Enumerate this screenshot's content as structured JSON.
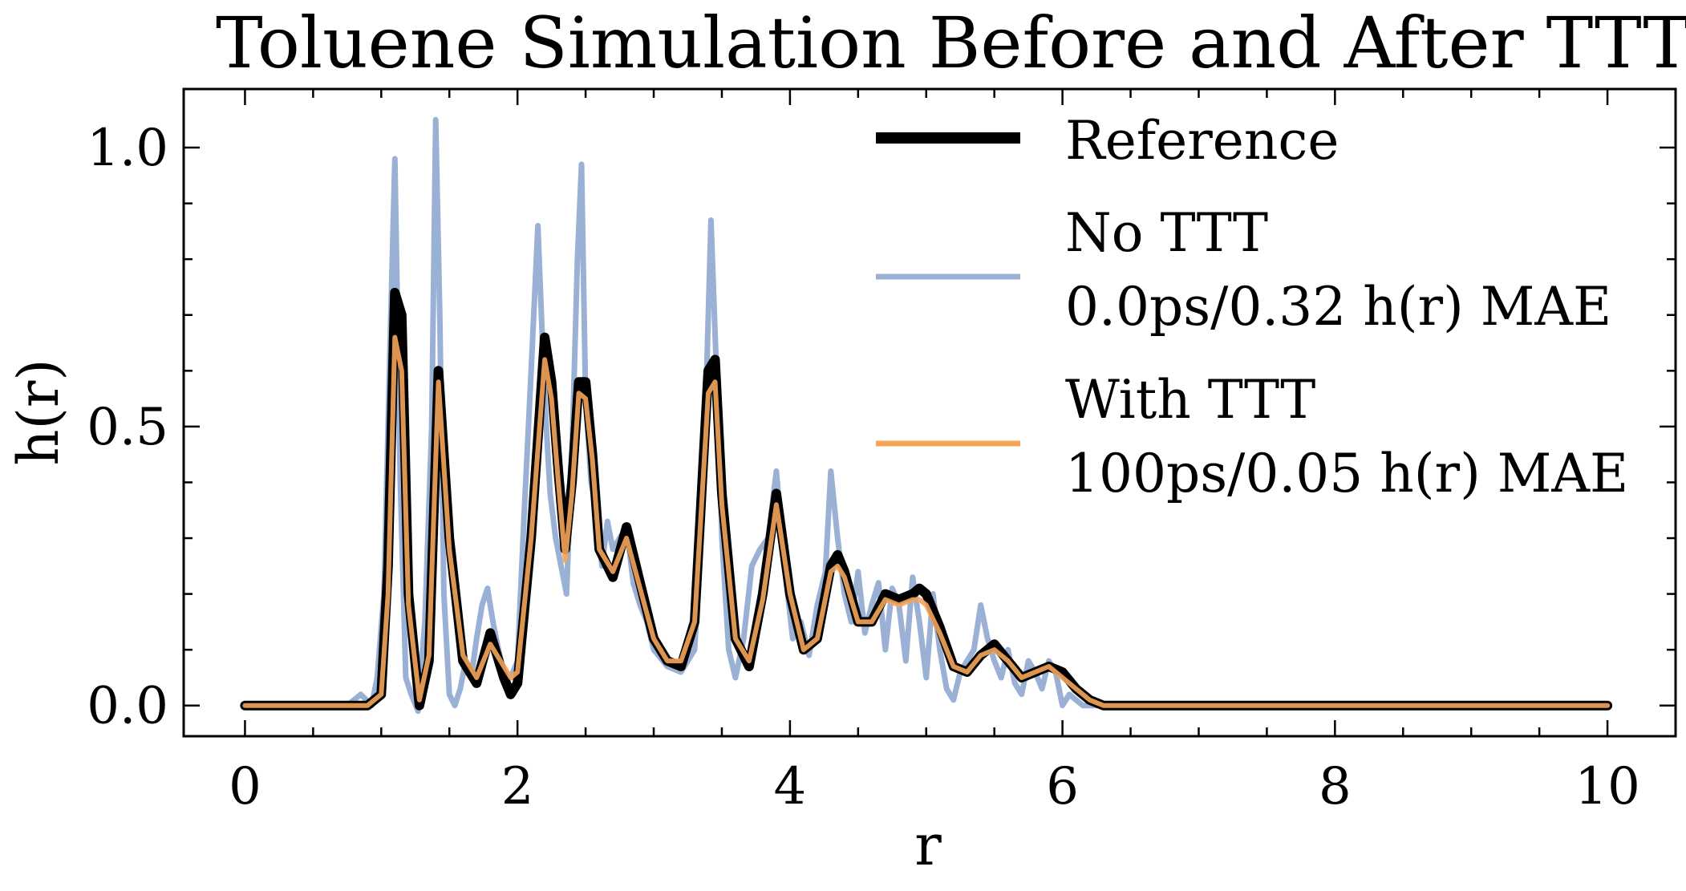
{
  "chart_data": {
    "type": "line",
    "title": "Toluene Simulation Before and After TTT",
    "xlabel": "r",
    "ylabel": "h(r)",
    "xlim": [
      -0.45,
      10.5
    ],
    "ylim": [
      -0.055,
      1.105
    ],
    "xticks": [
      0,
      2,
      4,
      6,
      8,
      10
    ],
    "xtick_labels": [
      "0",
      "2",
      "4",
      "6",
      "8",
      "10"
    ],
    "yticks": [
      0.0,
      0.5,
      1.0
    ],
    "ytick_labels": [
      "0.0",
      "0.5",
      "1.0"
    ],
    "grid": false,
    "legend_position": "top-right",
    "legend": [
      {
        "series": "Reference",
        "lines": [
          "Reference"
        ]
      },
      {
        "series": "No TTT",
        "lines": [
          "No TTT",
          "0.0ps/0.32 h(r) MAE"
        ]
      },
      {
        "series": "With TTT",
        "lines": [
          "With TTT",
          "100ps/0.05 h(r) MAE"
        ]
      }
    ],
    "series": [
      {
        "name": "No TTT",
        "color": "#9ab0d4",
        "x": [
          0,
          0.75,
          0.85,
          0.93,
          0.97,
          1.02,
          1.06,
          1.1,
          1.14,
          1.18,
          1.22,
          1.27,
          1.32,
          1.37,
          1.4,
          1.43,
          1.46,
          1.5,
          1.54,
          1.58,
          1.62,
          1.66,
          1.7,
          1.74,
          1.78,
          1.82,
          1.86,
          1.9,
          1.95,
          2.0,
          2.05,
          2.1,
          2.15,
          2.2,
          2.24,
          2.28,
          2.32,
          2.36,
          2.4,
          2.44,
          2.47,
          2.5,
          2.54,
          2.58,
          2.62,
          2.66,
          2.7,
          2.75,
          2.8,
          2.85,
          2.9,
          2.95,
          3.0,
          3.1,
          3.2,
          3.3,
          3.36,
          3.42,
          3.46,
          3.5,
          3.55,
          3.6,
          3.66,
          3.72,
          3.78,
          3.84,
          3.9,
          3.96,
          4.02,
          4.08,
          4.14,
          4.2,
          4.26,
          4.3,
          4.35,
          4.4,
          4.45,
          4.5,
          4.55,
          4.6,
          4.65,
          4.7,
          4.75,
          4.8,
          4.85,
          4.9,
          4.95,
          5.0,
          5.05,
          5.1,
          5.15,
          5.2,
          5.25,
          5.3,
          5.35,
          5.4,
          5.45,
          5.5,
          5.55,
          5.6,
          5.65,
          5.7,
          5.75,
          5.8,
          5.85,
          5.9,
          5.95,
          6.0,
          6.05,
          6.1,
          6.15,
          6.2,
          6.3,
          6.4,
          10.0
        ],
        "y": [
          0,
          0,
          0.02,
          0.0,
          0.05,
          0.2,
          0.6,
          0.98,
          0.4,
          0.05,
          0.02,
          -0.01,
          0.15,
          0.5,
          1.05,
          0.7,
          0.2,
          0.02,
          0.0,
          0.03,
          0.08,
          0.05,
          0.12,
          0.18,
          0.21,
          0.15,
          0.1,
          0.06,
          0.05,
          0.08,
          0.35,
          0.6,
          0.86,
          0.55,
          0.38,
          0.3,
          0.25,
          0.2,
          0.45,
          0.8,
          0.97,
          0.55,
          0.4,
          0.35,
          0.25,
          0.33,
          0.28,
          0.3,
          0.32,
          0.22,
          0.18,
          0.15,
          0.1,
          0.07,
          0.06,
          0.1,
          0.35,
          0.87,
          0.6,
          0.3,
          0.1,
          0.05,
          0.12,
          0.25,
          0.28,
          0.3,
          0.42,
          0.25,
          0.12,
          0.15,
          0.09,
          0.18,
          0.24,
          0.42,
          0.3,
          0.2,
          0.15,
          0.24,
          0.13,
          0.18,
          0.22,
          0.1,
          0.21,
          0.18,
          0.08,
          0.23,
          0.15,
          0.05,
          0.2,
          0.1,
          0.03,
          0.01,
          0.06,
          0.08,
          0.1,
          0.18,
          0.12,
          0.08,
          0.05,
          0.1,
          0.04,
          0.02,
          0.08,
          0.06,
          0.03,
          0.08,
          0.06,
          0.0,
          0.02,
          0.01,
          0.0,
          0.0,
          0.0,
          0.0,
          0.0
        ]
      },
      {
        "name": "Reference",
        "color": "#000000",
        "x": [
          0,
          0.9,
          1.0,
          1.05,
          1.1,
          1.15,
          1.2,
          1.28,
          1.35,
          1.42,
          1.5,
          1.6,
          1.7,
          1.8,
          1.9,
          1.95,
          2.0,
          2.1,
          2.2,
          2.25,
          2.3,
          2.35,
          2.4,
          2.45,
          2.5,
          2.55,
          2.6,
          2.7,
          2.8,
          2.9,
          3.0,
          3.1,
          3.2,
          3.3,
          3.4,
          3.45,
          3.5,
          3.6,
          3.7,
          3.8,
          3.9,
          4.0,
          4.1,
          4.2,
          4.3,
          4.35,
          4.4,
          4.5,
          4.6,
          4.7,
          4.8,
          4.9,
          4.95,
          5.0,
          5.1,
          5.2,
          5.3,
          5.4,
          5.5,
          5.6,
          5.7,
          5.8,
          5.9,
          6.0,
          6.1,
          6.2,
          6.3,
          10.0
        ],
        "y": [
          0,
          0,
          0.02,
          0.25,
          0.74,
          0.7,
          0.2,
          0.0,
          0.08,
          0.6,
          0.3,
          0.08,
          0.04,
          0.13,
          0.05,
          0.02,
          0.04,
          0.3,
          0.66,
          0.58,
          0.42,
          0.28,
          0.4,
          0.58,
          0.58,
          0.45,
          0.28,
          0.23,
          0.32,
          0.22,
          0.12,
          0.08,
          0.07,
          0.15,
          0.6,
          0.62,
          0.38,
          0.12,
          0.07,
          0.2,
          0.38,
          0.2,
          0.1,
          0.12,
          0.25,
          0.27,
          0.24,
          0.15,
          0.15,
          0.2,
          0.19,
          0.2,
          0.21,
          0.2,
          0.14,
          0.07,
          0.06,
          0.09,
          0.11,
          0.08,
          0.05,
          0.06,
          0.07,
          0.06,
          0.03,
          0.01,
          0.0,
          0.0
        ]
      },
      {
        "name": "With TTT",
        "color": "#f4a55a",
        "x": [
          0,
          0.9,
          1.0,
          1.05,
          1.1,
          1.15,
          1.2,
          1.28,
          1.35,
          1.42,
          1.5,
          1.6,
          1.7,
          1.8,
          1.9,
          1.95,
          2.0,
          2.1,
          2.2,
          2.25,
          2.3,
          2.35,
          2.4,
          2.45,
          2.5,
          2.55,
          2.6,
          2.7,
          2.8,
          2.9,
          3.0,
          3.1,
          3.2,
          3.3,
          3.4,
          3.45,
          3.5,
          3.6,
          3.7,
          3.8,
          3.9,
          4.0,
          4.1,
          4.2,
          4.3,
          4.35,
          4.4,
          4.5,
          4.6,
          4.7,
          4.8,
          4.9,
          4.95,
          5.0,
          5.1,
          5.2,
          5.3,
          5.4,
          5.5,
          5.6,
          5.7,
          5.8,
          5.9,
          6.0,
          6.1,
          6.2,
          6.3,
          10.0
        ],
        "y": [
          0,
          0,
          0.02,
          0.2,
          0.66,
          0.6,
          0.18,
          0.01,
          0.09,
          0.58,
          0.28,
          0.09,
          0.05,
          0.11,
          0.07,
          0.05,
          0.06,
          0.3,
          0.62,
          0.55,
          0.4,
          0.26,
          0.38,
          0.56,
          0.55,
          0.44,
          0.28,
          0.24,
          0.3,
          0.21,
          0.12,
          0.08,
          0.08,
          0.15,
          0.56,
          0.58,
          0.36,
          0.12,
          0.08,
          0.19,
          0.36,
          0.2,
          0.1,
          0.12,
          0.24,
          0.25,
          0.23,
          0.15,
          0.15,
          0.19,
          0.18,
          0.19,
          0.19,
          0.18,
          0.13,
          0.07,
          0.06,
          0.09,
          0.1,
          0.08,
          0.05,
          0.06,
          0.07,
          0.05,
          0.03,
          0.01,
          0.0,
          0.0
        ]
      }
    ]
  }
}
